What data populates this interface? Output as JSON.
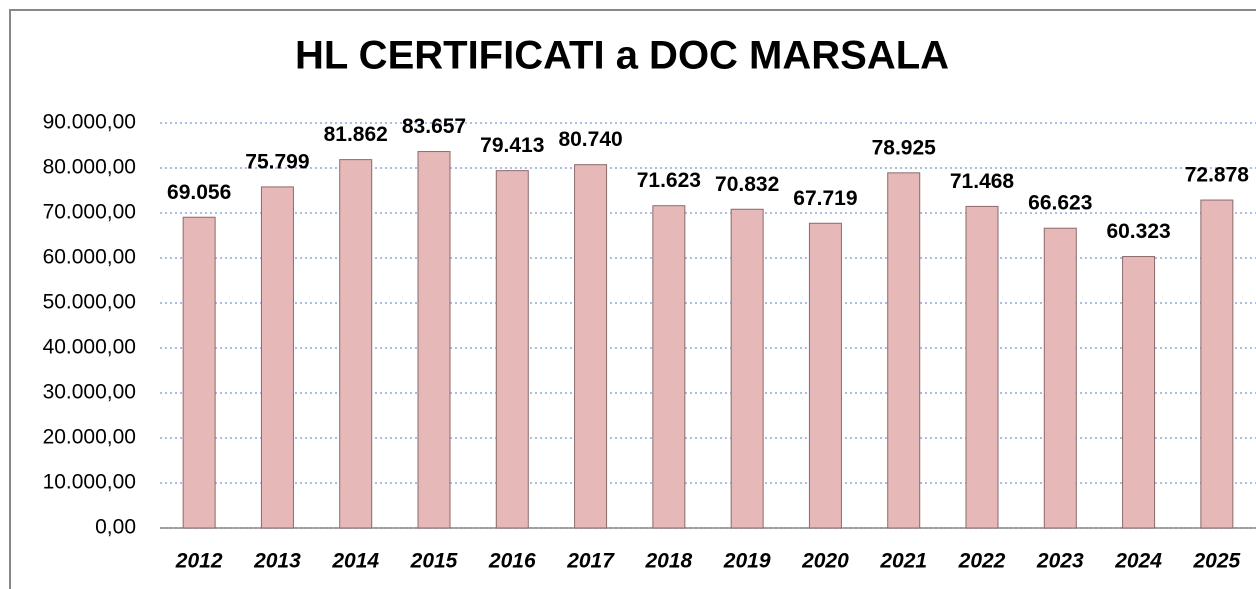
{
  "chart_data": {
    "type": "bar",
    "title": "HL CERTIFICATI a DOC MARSALA",
    "categories": [
      "2012",
      "2013",
      "2014",
      "2015",
      "2016",
      "2017",
      "2018",
      "2019",
      "2020",
      "2021",
      "2022",
      "2023",
      "2024",
      "2025"
    ],
    "values": [
      69056,
      75799,
      81862,
      83657,
      79413,
      80740,
      71623,
      70832,
      67719,
      78925,
      71468,
      66623,
      60323,
      72878
    ],
    "value_labels": [
      "69.056",
      "75.799",
      "81.862",
      "83.657",
      "79.413",
      "80.740",
      "71.623",
      "70.832",
      "67.719",
      "78.925",
      "71.468",
      "66.623",
      "60.323",
      "72.878"
    ],
    "color": "#e6b8b7",
    "ylim": [
      0,
      90000
    ],
    "yticks": [
      {
        "value": 0,
        "label": "0,00"
      },
      {
        "value": 10000,
        "label": "10.000,00"
      },
      {
        "value": 20000,
        "label": "20.000,00"
      },
      {
        "value": 30000,
        "label": "30.000,00"
      },
      {
        "value": 40000,
        "label": "40.000,00"
      },
      {
        "value": 50000,
        "label": "50.000,00"
      },
      {
        "value": 60000,
        "label": "60.000,00"
      },
      {
        "value": 70000,
        "label": "70.000,00"
      },
      {
        "value": 80000,
        "label": "80.000,00"
      },
      {
        "value": 90000,
        "label": "90.000,00"
      }
    ],
    "grid": true
  }
}
